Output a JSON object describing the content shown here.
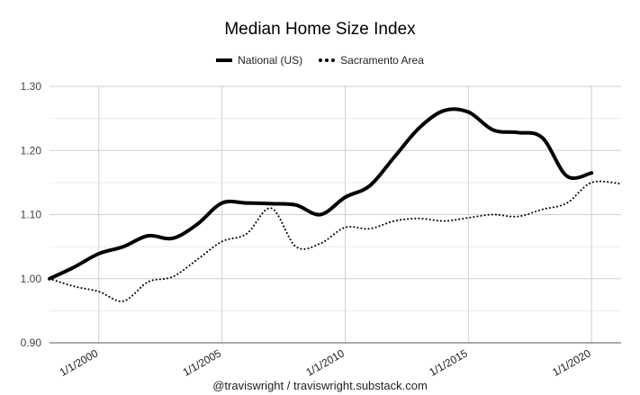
{
  "chart_data": {
    "type": "line",
    "title": "Median Home Size Index",
    "legend_position": "top",
    "grid": true,
    "ylim": [
      0.9,
      1.3
    ],
    "yticks": [
      0.9,
      1.0,
      1.1,
      1.2,
      1.3
    ],
    "ytick_labels": [
      "0.90",
      "1.00",
      "1.10",
      "1.20",
      "1.30"
    ],
    "xlim": [
      1998,
      2021.2
    ],
    "xticks": [
      2000,
      2005,
      2010,
      2015,
      2020
    ],
    "xtick_labels": [
      "1/1/2000",
      "1/1/2005",
      "1/1/2010",
      "1/1/2015",
      "1/1/2020"
    ],
    "series": [
      {
        "name": "National (US)",
        "style": "solid",
        "color": "#000000",
        "x": [
          1998,
          1999,
          2000,
          2001,
          2002,
          2003,
          2004,
          2005,
          2006,
          2007,
          2008,
          2009,
          2010,
          2011,
          2012,
          2013,
          2014,
          2015,
          2016,
          2017,
          2018,
          2019,
          2020
        ],
        "y": [
          1.0,
          1.018,
          1.039,
          1.05,
          1.067,
          1.063,
          1.085,
          1.118,
          1.118,
          1.117,
          1.115,
          1.1,
          1.127,
          1.145,
          1.19,
          1.235,
          1.262,
          1.26,
          1.232,
          1.228,
          1.22,
          1.16,
          1.165
        ]
      },
      {
        "name": "Sacramento Area",
        "style": "dotted",
        "color": "#000000",
        "x": [
          1998,
          1999,
          2000,
          2001,
          2002,
          2003,
          2004,
          2005,
          2006,
          2007,
          2008,
          2009,
          2010,
          2011,
          2012,
          2013,
          2014,
          2015,
          2016,
          2017,
          2018,
          2019,
          2020,
          2021.2
        ],
        "y": [
          1.0,
          0.988,
          0.98,
          0.965,
          0.995,
          1.003,
          1.03,
          1.058,
          1.07,
          1.11,
          1.05,
          1.055,
          1.08,
          1.078,
          1.09,
          1.094,
          1.09,
          1.095,
          1.1,
          1.097,
          1.108,
          1.118,
          1.15,
          1.148
        ]
      }
    ]
  },
  "watermark": "@traviswright / traviswright.substack.com"
}
